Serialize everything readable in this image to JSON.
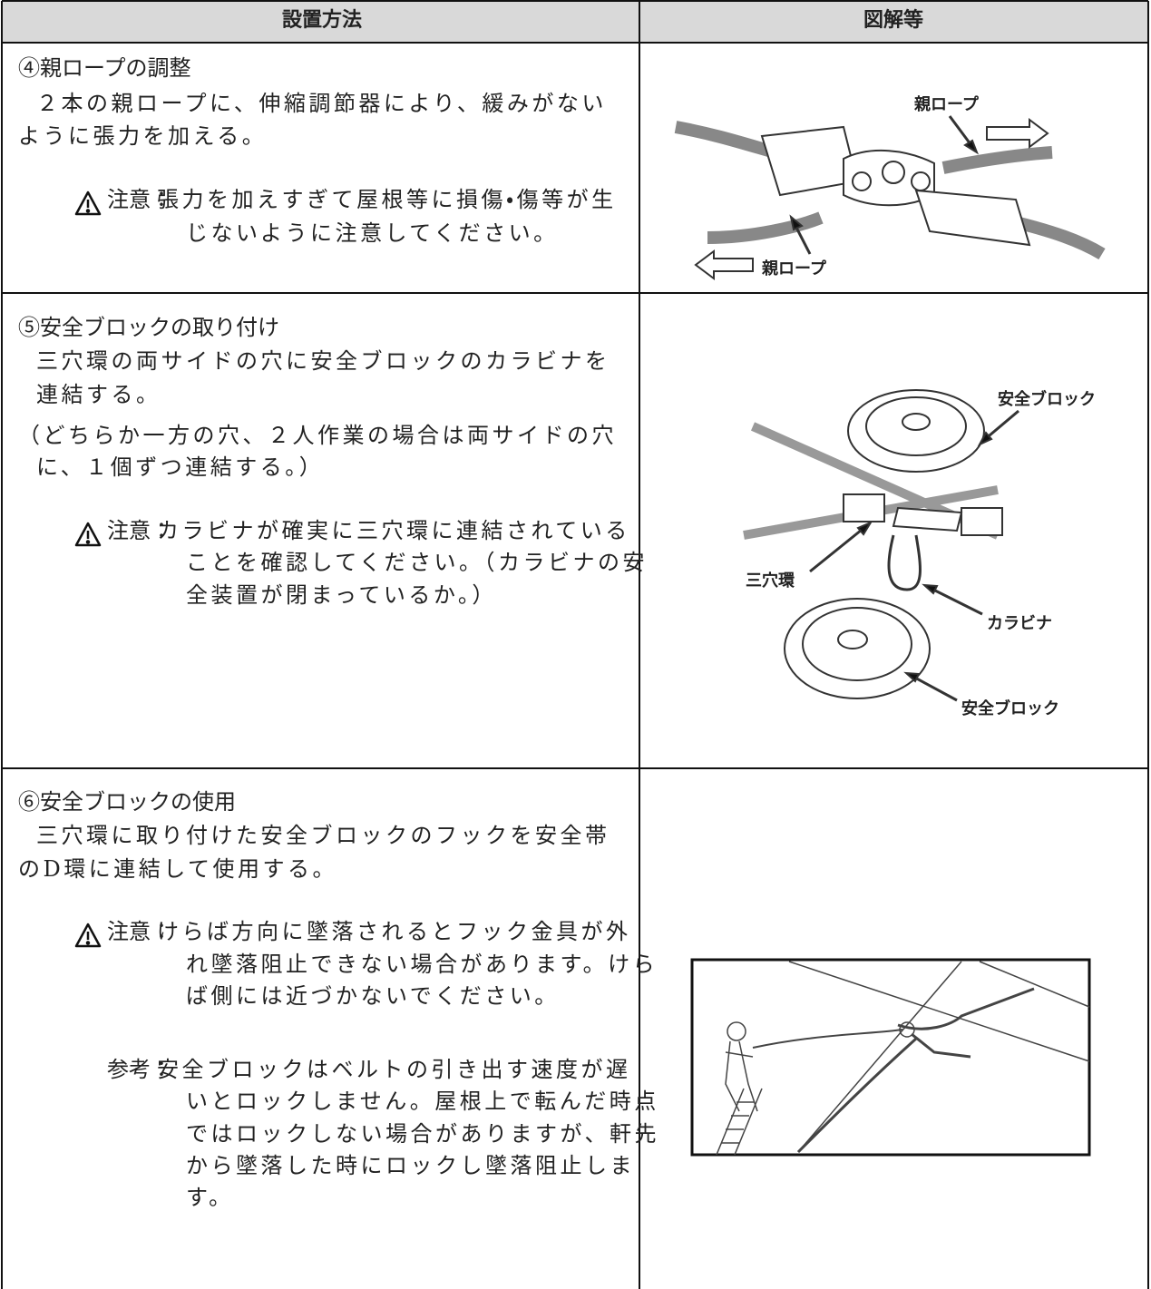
{
  "table": {
    "headers": [
      "設置方法",
      "図解等"
    ],
    "rows": [
      {
        "heading": "④親ロープの調整",
        "body": [
          "２本の親ロープに、伸縮調節器により、緩みがない",
          "ように張力を加える。"
        ],
        "caution_label": "注意：",
        "caution": [
          "張力を加えすぎて屋根等に損傷・傷等が生",
          "じないように注意してください。"
        ],
        "figure_labels": [
          "親ロープ",
          "親ロープ"
        ]
      },
      {
        "heading": "⑤安全ブロックの取り付け",
        "body": [
          "三穴環の両サイドの穴に安全ブロックのカラビナを",
          "連結する。"
        ],
        "note": [
          "（どちらか一方の穴、２人作業の場合は両サイドの穴",
          "に、１個ずつ連結する。）"
        ],
        "caution_label": "注意：",
        "caution": [
          "カラビナが確実に三穴環に連結されている",
          "ことを確認してください。（カラビナの安",
          "全装置が閉まっているか。）"
        ],
        "figure_labels": [
          "安全ブロック",
          "三穴環",
          "カラビナ",
          "安全ブロック"
        ]
      },
      {
        "heading": "⑥安全ブロックの使用",
        "body": [
          "三穴環に取り付けた安全ブロックのフックを安全帯",
          "のD環に連結して使用する。"
        ],
        "caution_label": "注意：",
        "caution": [
          "けらば方向に墜落されるとフック金具が外",
          "れ墜落阻止できない場合があります。けら",
          "ば側には近づかないでください。"
        ],
        "reference_label": "参考：",
        "reference": [
          "安全ブロックはベルトの引き出す速度が遅",
          "いとロックしません。屋根上で転んだ時点",
          "ではロックしない場合がありますが、軒先",
          "から墜落した時にロックし墜落阻止しま",
          "す。"
        ]
      }
    ]
  }
}
